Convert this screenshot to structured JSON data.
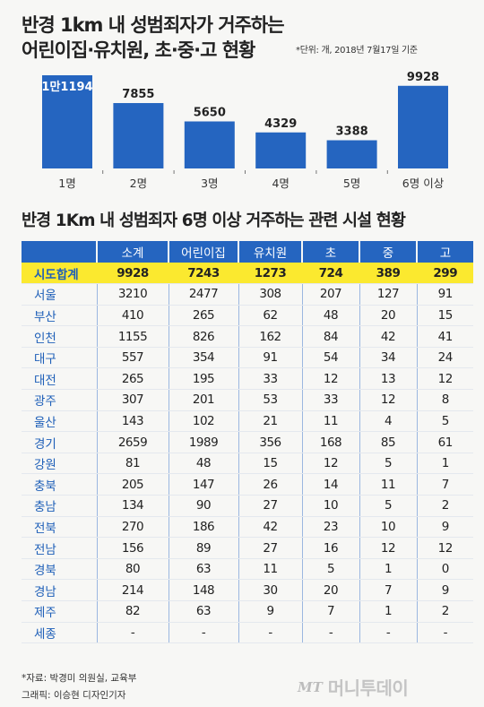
{
  "header": {
    "title_line1": "반경 1km 내 성범죄자가 거주하는",
    "title_line2": "어린이집·유치원, 초·중·고 현황",
    "unit_note": "*단위: 개, 2018년 7월17일 기준"
  },
  "colors": {
    "bar": "#2565c0",
    "header_bg": "#2565c0",
    "highlight": "#fbe92f",
    "region_text": "#1e5fb8"
  },
  "chart_data": {
    "type": "bar",
    "categories": [
      "1명",
      "2명",
      "3명",
      "4명",
      "5명",
      "6명 이상"
    ],
    "value_labels": [
      "1만1194",
      "7855",
      "5650",
      "4329",
      "3388",
      "9928"
    ],
    "values": [
      11194,
      7855,
      5650,
      4329,
      3388,
      9928
    ],
    "title": "반경 1km 내 성범죄자가 거주하는 어린이집·유치원, 초·중·고 현황",
    "xlabel": "",
    "ylabel": "",
    "ylim": [
      0,
      11194
    ],
    "grid": false,
    "legend": "none"
  },
  "table": {
    "title": "반경 1Km 내 성범죄자 6명 이상 거주하는 관련 시설 현황",
    "columns": [
      "",
      "소계",
      "어린이집",
      "유치원",
      "초",
      "중",
      "고"
    ],
    "total_row": [
      "시도합계",
      "9928",
      "7243",
      "1273",
      "724",
      "389",
      "299"
    ],
    "rows": [
      [
        "서울",
        "3210",
        "2477",
        "308",
        "207",
        "127",
        "91"
      ],
      [
        "부산",
        "410",
        "265",
        "62",
        "48",
        "20",
        "15"
      ],
      [
        "인천",
        "1155",
        "826",
        "162",
        "84",
        "42",
        "41"
      ],
      [
        "대구",
        "557",
        "354",
        "91",
        "54",
        "34",
        "24"
      ],
      [
        "대전",
        "265",
        "195",
        "33",
        "12",
        "13",
        "12"
      ],
      [
        "광주",
        "307",
        "201",
        "53",
        "33",
        "12",
        "8"
      ],
      [
        "울산",
        "143",
        "102",
        "21",
        "11",
        "4",
        "5"
      ],
      [
        "경기",
        "2659",
        "1989",
        "356",
        "168",
        "85",
        "61"
      ],
      [
        "강원",
        "81",
        "48",
        "15",
        "12",
        "5",
        "1"
      ],
      [
        "충북",
        "205",
        "147",
        "26",
        "14",
        "11",
        "7"
      ],
      [
        "충남",
        "134",
        "90",
        "27",
        "10",
        "5",
        "2"
      ],
      [
        "전북",
        "270",
        "186",
        "42",
        "23",
        "10",
        "9"
      ],
      [
        "전남",
        "156",
        "89",
        "27",
        "16",
        "12",
        "12"
      ],
      [
        "경북",
        "80",
        "63",
        "11",
        "5",
        "1",
        "0"
      ],
      [
        "경남",
        "214",
        "148",
        "30",
        "20",
        "7",
        "9"
      ],
      [
        "제주",
        "82",
        "63",
        "9",
        "7",
        "1",
        "2"
      ],
      [
        "세종",
        "-",
        "-",
        "-",
        "-",
        "-",
        "-"
      ]
    ]
  },
  "footer": {
    "source": "*자료: 박경미 의원실, 교육부",
    "credit": "그래픽: 이승현 디자인기자",
    "logo_mark": "MT",
    "logo_text": "머니투데이"
  }
}
